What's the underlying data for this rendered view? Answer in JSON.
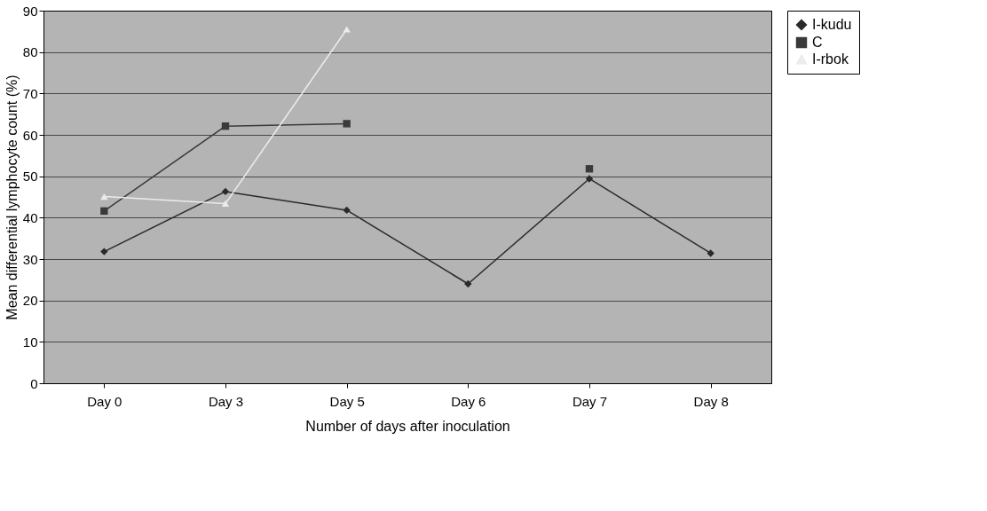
{
  "chart_data": {
    "type": "line",
    "xlabel": "Number of days after inoculation",
    "ylabel": "Mean differential lymphocyte count (%)",
    "categories": [
      "Day 0",
      "Day 3",
      "Day 5",
      "Day 6",
      "Day 7",
      "Day 8"
    ],
    "series": [
      {
        "name": "I-kudu",
        "color": "#2a2a2a",
        "marker": "diamond",
        "values": [
          31.8,
          46.3,
          41.8,
          24.0,
          49.4,
          31.4
        ]
      },
      {
        "name": "C",
        "color": "#3a3a3a",
        "marker": "square",
        "values": [
          41.6,
          62.1,
          62.7,
          null,
          51.8,
          null
        ]
      },
      {
        "name": "I-rbok",
        "color": "#ececec",
        "marker": "triangle",
        "values": [
          45.1,
          43.4,
          85.5,
          null,
          null,
          null
        ]
      }
    ],
    "ylim": [
      0,
      90
    ],
    "yticks": [
      0,
      10,
      20,
      30,
      40,
      50,
      60,
      70,
      80,
      90
    ],
    "grid": "y",
    "legend": "right",
    "line_style": "solid"
  }
}
